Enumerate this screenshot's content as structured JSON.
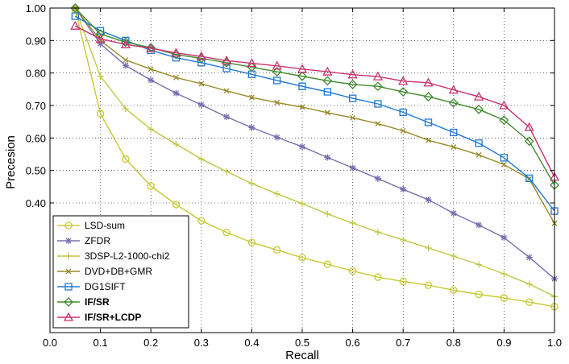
{
  "chart_data": {
    "type": "line",
    "title": "",
    "xlabel": "Recall",
    "ylabel": "Precesion",
    "xlim": [
      0.0,
      1.0
    ],
    "ylim_top": 1.0,
    "grid": true,
    "x_ticks": [
      "0.0",
      "0.1",
      "0.2",
      "0.3",
      "0.4",
      "0.5",
      "0.6",
      "0.7",
      "0.8",
      "0.9",
      "1.0"
    ],
    "y_ticks": [
      {
        "value": 1.0,
        "label": "1.00"
      },
      {
        "value": 0.9,
        "label": "0.90"
      },
      {
        "value": 0.8,
        "label": "0.80"
      },
      {
        "value": 0.7,
        "label": "0.70"
      },
      {
        "value": 0.6,
        "label": "0.60"
      },
      {
        "value": 0.5,
        "label": "0.50"
      },
      {
        "value": 0.4,
        "label": "0.40"
      }
    ],
    "legend_position": "bottom-left",
    "series": [
      {
        "name": "LSD-sum",
        "color": "#c8c832",
        "marker": "circle",
        "bold": false,
        "x": [
          0.05,
          0.1,
          0.15,
          0.2,
          0.25,
          0.3,
          0.35,
          0.4,
          0.45,
          0.5,
          0.55,
          0.6,
          0.65,
          0.7,
          0.75,
          0.8,
          0.85,
          0.9,
          0.95,
          1.0
        ],
        "y": [
          0.995,
          0.675,
          0.535,
          0.452,
          0.395,
          0.345,
          0.309,
          0.278,
          0.255,
          0.231,
          0.211,
          0.19,
          0.171,
          0.158,
          0.146,
          0.131,
          0.118,
          0.107,
          0.094,
          0.08
        ]
      },
      {
        "name": "ZFDR",
        "color": "#7a6fb0",
        "marker": "star",
        "bold": false,
        "x": [
          0.05,
          0.1,
          0.15,
          0.2,
          0.25,
          0.3,
          0.35,
          0.4,
          0.45,
          0.5,
          0.55,
          0.6,
          0.65,
          0.7,
          0.75,
          0.8,
          0.85,
          0.9,
          0.95,
          1.0
        ],
        "y": [
          1.0,
          0.89,
          0.823,
          0.778,
          0.738,
          0.702,
          0.665,
          0.632,
          0.602,
          0.573,
          0.54,
          0.508,
          0.475,
          0.442,
          0.41,
          0.368,
          0.332,
          0.293,
          0.232,
          0.166
        ]
      },
      {
        "name": "3DSP-L2-1000-chi2",
        "color": "#c0c845",
        "marker": "plus",
        "bold": false,
        "x": [
          0.05,
          0.1,
          0.15,
          0.2,
          0.25,
          0.3,
          0.35,
          0.4,
          0.45,
          0.5,
          0.55,
          0.6,
          0.65,
          0.7,
          0.75,
          0.8,
          0.85,
          0.9,
          0.95,
          1.0
        ],
        "y": [
          1.0,
          0.79,
          0.69,
          0.627,
          0.581,
          0.535,
          0.497,
          0.46,
          0.428,
          0.398,
          0.366,
          0.338,
          0.31,
          0.286,
          0.261,
          0.236,
          0.21,
          0.181,
          0.15,
          0.111
        ]
      },
      {
        "name": "DVD+DB+GMR",
        "color": "#9a8a28",
        "marker": "x",
        "bold": false,
        "x": [
          0.05,
          0.1,
          0.15,
          0.2,
          0.25,
          0.3,
          0.35,
          0.4,
          0.45,
          0.5,
          0.55,
          0.6,
          0.65,
          0.7,
          0.75,
          0.8,
          0.85,
          0.9,
          0.95,
          1.0
        ],
        "y": [
          1.0,
          0.9,
          0.84,
          0.812,
          0.786,
          0.767,
          0.745,
          0.725,
          0.709,
          0.695,
          0.678,
          0.662,
          0.644,
          0.622,
          0.593,
          0.572,
          0.548,
          0.518,
          0.474,
          0.337
        ]
      },
      {
        "name": "DG1SIFT",
        "color": "#1f78d4",
        "marker": "square",
        "bold": false,
        "x": [
          0.05,
          0.1,
          0.15,
          0.2,
          0.25,
          0.3,
          0.35,
          0.4,
          0.45,
          0.5,
          0.55,
          0.6,
          0.65,
          0.7,
          0.75,
          0.8,
          0.85,
          0.9,
          0.95,
          1.0
        ],
        "y": [
          0.975,
          0.93,
          0.9,
          0.87,
          0.847,
          0.832,
          0.814,
          0.796,
          0.777,
          0.759,
          0.742,
          0.722,
          0.705,
          0.679,
          0.648,
          0.617,
          0.584,
          0.539,
          0.476,
          0.375
        ]
      },
      {
        "name": "IF/SR",
        "color": "#3f8a2c",
        "marker": "diamond",
        "bold": true,
        "x": [
          0.05,
          0.1,
          0.15,
          0.2,
          0.25,
          0.3,
          0.35,
          0.4,
          0.45,
          0.5,
          0.55,
          0.6,
          0.65,
          0.7,
          0.75,
          0.8,
          0.85,
          0.9,
          0.95,
          1.0
        ],
        "y": [
          1.0,
          0.92,
          0.895,
          0.878,
          0.857,
          0.845,
          0.832,
          0.818,
          0.804,
          0.79,
          0.776,
          0.765,
          0.759,
          0.742,
          0.727,
          0.708,
          0.688,
          0.655,
          0.59,
          0.455
        ]
      },
      {
        "name": "IF/SR+LCDP",
        "color": "#c8326e",
        "marker": "triangle",
        "bold": true,
        "x": [
          0.05,
          0.1,
          0.15,
          0.2,
          0.25,
          0.3,
          0.35,
          0.4,
          0.45,
          0.5,
          0.55,
          0.6,
          0.65,
          0.7,
          0.75,
          0.8,
          0.85,
          0.9,
          0.95,
          1.0
        ],
        "y": [
          0.945,
          0.905,
          0.888,
          0.876,
          0.862,
          0.851,
          0.838,
          0.83,
          0.822,
          0.812,
          0.804,
          0.795,
          0.789,
          0.775,
          0.77,
          0.748,
          0.727,
          0.7,
          0.633,
          0.48
        ]
      }
    ]
  }
}
